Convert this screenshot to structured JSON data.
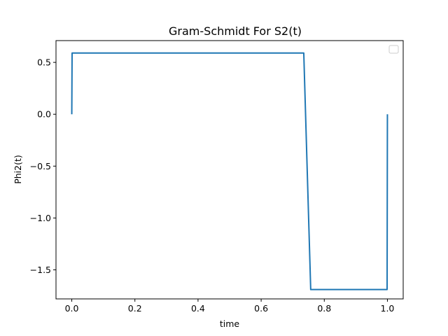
{
  "chart_data": {
    "type": "line",
    "title": "Gram-Schmidt For S2(t)",
    "xlabel": "time",
    "ylabel": "Phi2(t)",
    "xlim": [
      -0.05,
      1.05
    ],
    "ylim": [
      -1.78,
      0.71
    ],
    "x_ticks": [
      0.0,
      0.2,
      0.4,
      0.6,
      0.8,
      1.0
    ],
    "x_tick_labels": [
      "0.0",
      "0.2",
      "0.4",
      "0.6",
      "0.8",
      "1.0"
    ],
    "y_ticks": [
      0.5,
      0.0,
      -0.5,
      -1.0,
      -1.5
    ],
    "y_tick_labels": [
      "0.5",
      "0.0",
      "−0.5",
      "−1.0",
      "−1.5"
    ],
    "grid": false,
    "legend": "top-right",
    "series": [
      {
        "color": "#1f77b4",
        "x": [
          0.0,
          0.001,
          0.735,
          0.757,
          0.999,
          1.0
        ],
        "y": [
          0.0,
          0.59,
          0.59,
          -1.69,
          -1.69,
          0.0
        ]
      }
    ]
  }
}
